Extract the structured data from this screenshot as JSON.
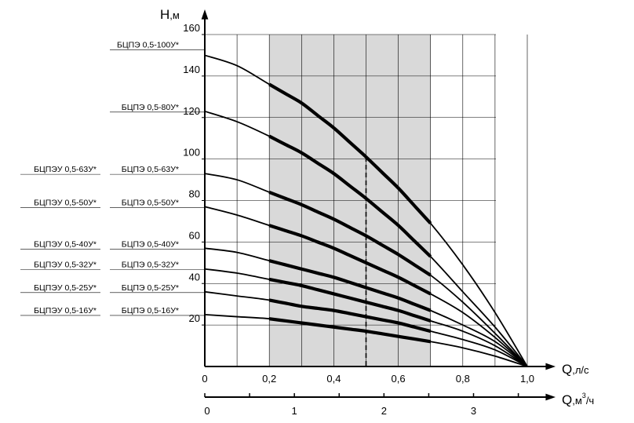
{
  "chart_data": {
    "type": "line",
    "title": "",
    "ylabel": {
      "main": "H",
      "unit": ",м"
    },
    "xlabel": {
      "main": "Q",
      "unit": ",л/с"
    },
    "x2label": {
      "main": "Q",
      "unit": ",м",
      "sup": "3",
      "tail": "/ч"
    },
    "xlim": [
      0,
      1.0
    ],
    "ylim": [
      0,
      160
    ],
    "x2lim": [
      0,
      3.6
    ],
    "x_ticks": [
      {
        "v": 0,
        "label": "0"
      },
      {
        "v": 0.2,
        "label": "0,2"
      },
      {
        "v": 0.4,
        "label": "0,4"
      },
      {
        "v": 0.6,
        "label": "0,6"
      },
      {
        "v": 0.8,
        "label": "0,8"
      },
      {
        "v": 1.0,
        "label": "1,0"
      }
    ],
    "y_ticks": [
      {
        "v": 20,
        "label": "20"
      },
      {
        "v": 40,
        "label": "40"
      },
      {
        "v": 60,
        "label": "60"
      },
      {
        "v": 80,
        "label": "80"
      },
      {
        "v": 100,
        "label": "100"
      },
      {
        "v": 120,
        "label": "120"
      },
      {
        "v": 140,
        "label": "140"
      },
      {
        "v": 160,
        "label": "160"
      }
    ],
    "x2_ticks": [
      {
        "v": 0,
        "label": "0"
      },
      {
        "v": 1,
        "label": "1"
      },
      {
        "v": 2,
        "label": "2"
      },
      {
        "v": 3,
        "label": "3"
      }
    ],
    "x2_minor_step": 0.5,
    "grid": true,
    "grid_x_step": 0.1,
    "grid_y_step": 20,
    "working_range": [
      0.2,
      0.7
    ],
    "nominal_q": 0.5,
    "series": [
      {
        "name": "БЦПЭ 0,5-100У*",
        "label2": "",
        "x": [
          0,
          0.1,
          0.2,
          0.3,
          0.4,
          0.5,
          0.6,
          0.7,
          0.8,
          0.9,
          1.0
        ],
        "y": [
          150,
          145,
          136,
          127,
          115,
          101,
          86,
          69,
          49,
          26,
          0
        ]
      },
      {
        "name": "БЦПЭ 0,5-80У*",
        "label2": "",
        "x": [
          0,
          0.1,
          0.2,
          0.3,
          0.4,
          0.5,
          0.6,
          0.7,
          0.8,
          0.9,
          1.0
        ],
        "y": [
          123,
          118,
          111,
          103,
          93,
          81,
          68,
          53,
          36,
          19,
          0
        ]
      },
      {
        "name": "БЦПЭ 0,5-63У*",
        "label2": "БЦПЭУ 0,5-63У*",
        "x": [
          0,
          0.1,
          0.2,
          0.3,
          0.4,
          0.5,
          0.6,
          0.7,
          0.8,
          0.9,
          1.0
        ],
        "y": [
          93,
          90,
          84,
          78,
          71,
          63,
          54,
          44,
          31,
          16,
          0
        ]
      },
      {
        "name": "БЦПЭ 0,5-50У*",
        "label2": "БЦПЭУ 0,5-50У*",
        "x": [
          0,
          0.1,
          0.2,
          0.3,
          0.4,
          0.5,
          0.6,
          0.7,
          0.8,
          0.9,
          1.0
        ],
        "y": [
          77,
          73,
          68,
          63,
          57,
          50,
          43,
          35,
          26,
          14,
          0
        ]
      },
      {
        "name": "БЦПЭ 0,5-40У*",
        "label2": "БЦПЭУ 0,5-40У*",
        "x": [
          0,
          0.1,
          0.2,
          0.3,
          0.4,
          0.5,
          0.6,
          0.7,
          0.8,
          0.9,
          1.0
        ],
        "y": [
          57,
          55,
          51,
          47,
          43,
          38,
          33,
          27,
          20,
          12,
          0
        ]
      },
      {
        "name": "БЦПЭ 0,5-32У*",
        "label2": "БЦПЭУ 0,5-32У*",
        "x": [
          0,
          0.1,
          0.2,
          0.3,
          0.4,
          0.5,
          0.6,
          0.7,
          0.8,
          0.9,
          1.0
        ],
        "y": [
          47,
          45,
          42,
          39,
          35,
          31,
          27,
          22,
          17,
          10,
          0
        ]
      },
      {
        "name": "БЦПЭ 0,5-25У*",
        "label2": "БЦПЭУ 0,5-25У*",
        "x": [
          0,
          0.1,
          0.2,
          0.3,
          0.4,
          0.5,
          0.6,
          0.7,
          0.8,
          0.9,
          1.0
        ],
        "y": [
          36,
          34,
          32,
          29,
          27,
          24,
          21,
          17,
          13,
          8,
          0
        ]
      },
      {
        "name": "БЦПЭ 0,5-16У*",
        "label2": "БЦПЭУ 0,5-16У*",
        "x": [
          0,
          0.1,
          0.2,
          0.3,
          0.4,
          0.5,
          0.6,
          0.7,
          0.8,
          0.9,
          1.0
        ],
        "y": [
          25,
          24,
          23,
          21,
          19,
          17,
          14.5,
          12,
          9,
          5,
          0
        ]
      }
    ],
    "colors": {
      "line": "#000000",
      "grid": "#000000",
      "shade": "#d9d9d9"
    }
  }
}
